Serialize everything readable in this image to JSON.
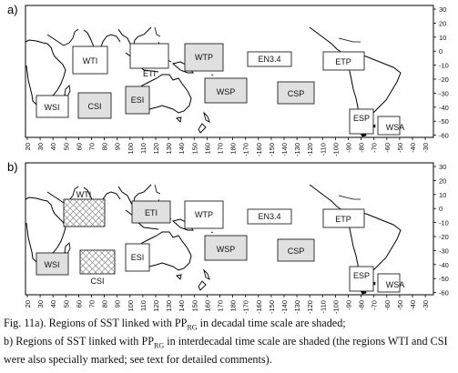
{
  "panels": [
    {
      "label": "a)",
      "regions": [
        {
          "name": "WTI",
          "shaded": false,
          "hatched": false
        },
        {
          "name": "ETI",
          "shaded": false,
          "hatched": false
        },
        {
          "name": "WTP",
          "shaded": true,
          "hatched": false
        },
        {
          "name": "EN3.4",
          "shaded": false,
          "hatched": false
        },
        {
          "name": "ETP",
          "shaded": false,
          "hatched": false
        },
        {
          "name": "WSI",
          "shaded": false,
          "hatched": false
        },
        {
          "name": "CSI",
          "shaded": true,
          "hatched": false
        },
        {
          "name": "ESI",
          "shaded": true,
          "hatched": false
        },
        {
          "name": "WSP",
          "shaded": true,
          "hatched": false
        },
        {
          "name": "CSP",
          "shaded": true,
          "hatched": false
        },
        {
          "name": "ESP",
          "shaded": false,
          "hatched": false
        },
        {
          "name": "WSA",
          "shaded": false,
          "hatched": false
        }
      ]
    },
    {
      "label": "b)",
      "regions": [
        {
          "name": "WTI",
          "shaded": false,
          "hatched": true
        },
        {
          "name": "ETI",
          "shaded": true,
          "hatched": false
        },
        {
          "name": "WTP",
          "shaded": false,
          "hatched": false
        },
        {
          "name": "EN3.4",
          "shaded": false,
          "hatched": false
        },
        {
          "name": "ETP",
          "shaded": false,
          "hatched": false
        },
        {
          "name": "WSI",
          "shaded": true,
          "hatched": false
        },
        {
          "name": "CSI",
          "shaded": false,
          "hatched": true
        },
        {
          "name": "ESI",
          "shaded": false,
          "hatched": false
        },
        {
          "name": "WSP",
          "shaded": true,
          "hatched": false
        },
        {
          "name": "CSP",
          "shaded": true,
          "hatched": false
        },
        {
          "name": "ESP",
          "shaded": false,
          "hatched": false
        },
        {
          "name": "WSA",
          "shaded": false,
          "hatched": false
        }
      ]
    }
  ],
  "y_ticks": [
    "30",
    "20",
    "10",
    "0",
    "-10",
    "-20",
    "-30",
    "-40",
    "-50",
    "-60"
  ],
  "x_ticks": [
    "20",
    "30",
    "40",
    "50",
    "60",
    "70",
    "80",
    "90",
    "100",
    "110",
    "120",
    "130",
    "140",
    "150",
    "160",
    "170",
    "180",
    "-170",
    "-160",
    "-150",
    "-140",
    "-130",
    "-120",
    "-110",
    "-100",
    "-90",
    "-80",
    "-70",
    "-60",
    "-50",
    "-40",
    "-30"
  ],
  "caption": {
    "p1": "Fig. 11a). Regions of SST linked with PP",
    "sub1": "RG",
    "p2": " in decadal time scale are shaded;",
    "p3": "b) Regions of SST linked with PP",
    "sub2": "RG",
    "p4": " in interdecadal time scale are shaded (the regions WTI and CSI were also specially marked; see text for detailed comments)."
  },
  "colors": {
    "shade": "#e0e0e0",
    "outline": "#222222",
    "land": "#000000"
  }
}
